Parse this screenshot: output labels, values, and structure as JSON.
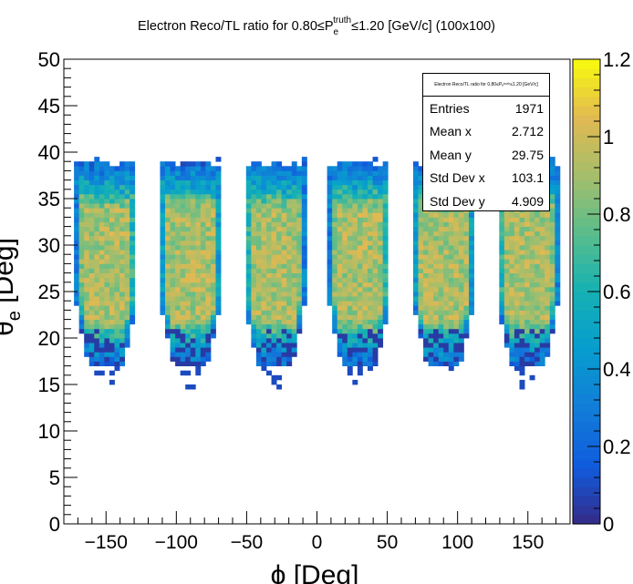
{
  "chart_data": {
    "type": "heatmap",
    "title_parts": {
      "prefix": "Electron Reco/TL ratio for 0.80≤P",
      "sub": "e",
      "sup": "truth",
      "suffix": "≤1.20 [GeV/c] (100x100)"
    },
    "xlabel": "ϕ  [Deg]",
    "ylabel_parts": {
      "main": "θ",
      "sub": "e",
      "rest": " [Deg]"
    },
    "xlim": [
      -180,
      180
    ],
    "ylim": [
      0,
      50
    ],
    "x_ticks": [
      -150,
      -100,
      -50,
      0,
      50,
      100,
      150
    ],
    "x_tick_labels": [
      "−150",
      "−100",
      "−50",
      "0",
      "50",
      "100",
      "150"
    ],
    "y_ticks": [
      0,
      5,
      10,
      15,
      20,
      25,
      30,
      35,
      40,
      45,
      50
    ],
    "y_tick_labels": [
      "0",
      "5",
      "10",
      "15",
      "20",
      "25",
      "30",
      "35",
      "40",
      "45",
      "50"
    ],
    "bins": [
      100,
      100
    ],
    "sector_centers_deg": [
      -150,
      -90,
      -30,
      30,
      90,
      150
    ],
    "sector_y_range_deg": [
      17,
      38.5
    ],
    "colorbar": {
      "range": [
        0,
        1.2
      ],
      "ticks": [
        0,
        0.2,
        0.4,
        0.6,
        0.8,
        1,
        1.2
      ],
      "tick_labels": [
        "0",
        "0.2",
        "0.4",
        "0.6",
        "0.8",
        "1",
        "1.2"
      ]
    },
    "stats": {
      "title": "Electron Reco/TL ratio for 0.80≤Pₑᵗʳᵘᵗʰ≤1.20 [GeV/c]",
      "rows": [
        {
          "label": "Entries",
          "value": "1971"
        },
        {
          "label": "Mean x",
          "value": "2.712"
        },
        {
          "label": "Mean y",
          "value": "29.75"
        },
        {
          "label": "Std Dev x",
          "value": "103.1"
        },
        {
          "label": "Std Dev y",
          "value": "4.909"
        }
      ]
    }
  }
}
